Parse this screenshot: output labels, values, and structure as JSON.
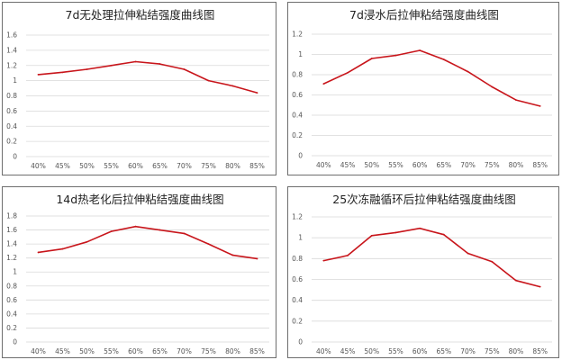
{
  "chart_data": [
    {
      "type": "line",
      "title": "7d无处理拉伸粘结强度曲线图",
      "categories": [
        "40%",
        "45%",
        "50%",
        "55%",
        "60%",
        "65%",
        "70%",
        "75%",
        "80%",
        "85%"
      ],
      "series": [
        {
          "values": [
            1.08,
            1.11,
            1.15,
            1.2,
            1.25,
            1.22,
            1.15,
            1.0,
            0.93,
            0.84
          ]
        }
      ],
      "y_ticks": [
        "0",
        "0.2",
        "0.4",
        "0.6",
        "0.8",
        "1",
        "1.2",
        "1.4",
        "1.6"
      ],
      "ylim": [
        0,
        1.6
      ],
      "line_color": "#c8151b",
      "grid": true
    },
    {
      "type": "line",
      "title": "7d浸水后拉伸粘结强度曲线图",
      "categories": [
        "40%",
        "45%",
        "50%",
        "55%",
        "60%",
        "65%",
        "70%",
        "75%",
        "80%",
        "85%"
      ],
      "series": [
        {
          "values": [
            0.71,
            0.82,
            0.96,
            0.99,
            1.04,
            0.95,
            0.83,
            0.68,
            0.55,
            0.49
          ]
        }
      ],
      "y_ticks": [
        "0",
        "0.2",
        "0.4",
        "0.6",
        "0.8",
        "1",
        "1.2"
      ],
      "ylim": [
        0,
        1.2
      ],
      "line_color": "#c8151b",
      "grid": true
    },
    {
      "type": "line",
      "title": "14d热老化后拉伸粘结强度曲线图",
      "categories": [
        "40%",
        "45%",
        "50%",
        "55%",
        "60%",
        "65%",
        "70%",
        "75%",
        "80%",
        "85%"
      ],
      "series": [
        {
          "values": [
            1.28,
            1.33,
            1.43,
            1.58,
            1.65,
            1.6,
            1.55,
            1.4,
            1.24,
            1.19
          ]
        }
      ],
      "y_ticks": [
        "0",
        "0.2",
        "0.4",
        "0.6",
        "0.8",
        "1",
        "1.2",
        "1.4",
        "1.6",
        "1.8"
      ],
      "ylim": [
        0,
        1.8
      ],
      "line_color": "#c8151b",
      "grid": true
    },
    {
      "type": "line",
      "title": "25次冻融循环后拉伸粘结强度曲线图",
      "categories": [
        "40%",
        "45%",
        "50%",
        "55%",
        "60%",
        "65%",
        "70%",
        "75%",
        "80%",
        "85%"
      ],
      "series": [
        {
          "values": [
            0.78,
            0.83,
            1.02,
            1.05,
            1.09,
            1.03,
            0.85,
            0.77,
            0.59,
            0.53
          ]
        }
      ],
      "y_ticks": [
        "0",
        "0.2",
        "0.4",
        "0.6",
        "0.8",
        "1",
        "1.2"
      ],
      "ylim": [
        0,
        1.2
      ],
      "line_color": "#c8151b",
      "grid": true
    }
  ]
}
